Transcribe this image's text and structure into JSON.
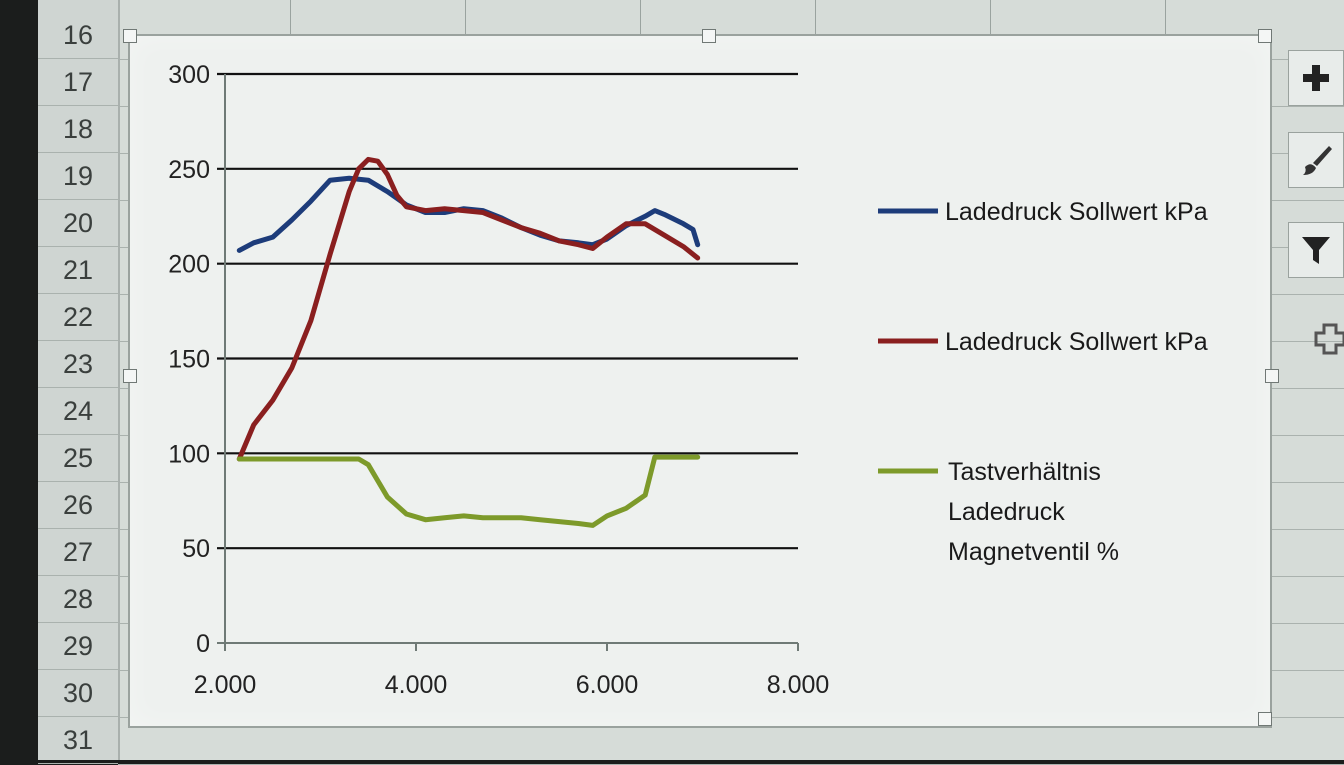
{
  "spreadsheet": {
    "row_numbers": [
      "16",
      "17",
      "18",
      "19",
      "20",
      "21",
      "22",
      "23",
      "24",
      "25",
      "26",
      "27",
      "28",
      "29",
      "30",
      "31"
    ]
  },
  "chart_data": {
    "type": "line",
    "x_ticks": [
      "2.000",
      "4.000",
      "6.000",
      "8.000"
    ],
    "y_ticks": [
      "0",
      "50",
      "100",
      "150",
      "200",
      "250",
      "300"
    ],
    "xlim": [
      2000,
      8000
    ],
    "ylim": [
      0,
      300
    ],
    "grid": true,
    "legend_position": "right",
    "series": [
      {
        "name": "Ladedruck Sollwert kPa",
        "color": "#1d3c7a",
        "x": [
          2150,
          2300,
          2500,
          2700,
          2900,
          3100,
          3300,
          3500,
          3700,
          3900,
          4100,
          4300,
          4500,
          4700,
          4900,
          5100,
          5300,
          5500,
          5700,
          5850,
          6000,
          6200,
          6400,
          6500,
          6600,
          6800,
          6900,
          6950
        ],
        "y": [
          207,
          211,
          214,
          223,
          233,
          244,
          245,
          244,
          238,
          231,
          227,
          227,
          229,
          228,
          224,
          219,
          215,
          212,
          211,
          210,
          213,
          220,
          225,
          228,
          226,
          221,
          218,
          210
        ]
      },
      {
        "name": "Ladedruck Sollwert kPa",
        "color": "#8a1f1f",
        "x": [
          2150,
          2300,
          2500,
          2700,
          2900,
          3100,
          3300,
          3400,
          3500,
          3600,
          3700,
          3800,
          3900,
          4100,
          4300,
          4500,
          4700,
          4900,
          5100,
          5300,
          5500,
          5700,
          5850,
          6000,
          6200,
          6400,
          6600,
          6800,
          6950
        ],
        "y": [
          97,
          115,
          128,
          145,
          170,
          205,
          238,
          250,
          255,
          254,
          247,
          236,
          230,
          228,
          229,
          228,
          227,
          223,
          219,
          216,
          212,
          210,
          208,
          214,
          221,
          221,
          215,
          209,
          203
        ]
      },
      {
        "name": "Tastverhältnis Ladedruck Magnetventil %",
        "color": "#7d9a2a",
        "x": [
          2150,
          2500,
          3000,
          3400,
          3500,
          3700,
          3900,
          4100,
          4300,
          4500,
          4700,
          4900,
          5100,
          5300,
          5500,
          5700,
          5850,
          6000,
          6200,
          6400,
          6500,
          6600,
          6800,
          6950
        ],
        "y": [
          97,
          97,
          97,
          97,
          94,
          77,
          68,
          65,
          66,
          67,
          66,
          66,
          66,
          65,
          64,
          63,
          62,
          67,
          71,
          78,
          98,
          98,
          98,
          98
        ]
      }
    ]
  },
  "legend": [
    {
      "label": "Ladedruck Sollwert kPa",
      "color": "#1d3c7a"
    },
    {
      "label": "Ladedruck Sollwert kPa",
      "color": "#8a1f1f"
    },
    {
      "line1": "Tastverhältnis",
      "line2": "Ladedruck",
      "line3": "Magnetventil %",
      "color": "#7d9a2a"
    }
  ],
  "toolbar": {
    "add_elements_icon": "plus-icon",
    "style_icon": "paintbrush-icon",
    "filter_icon": "funnel-icon",
    "move_icon": "move-icon"
  }
}
